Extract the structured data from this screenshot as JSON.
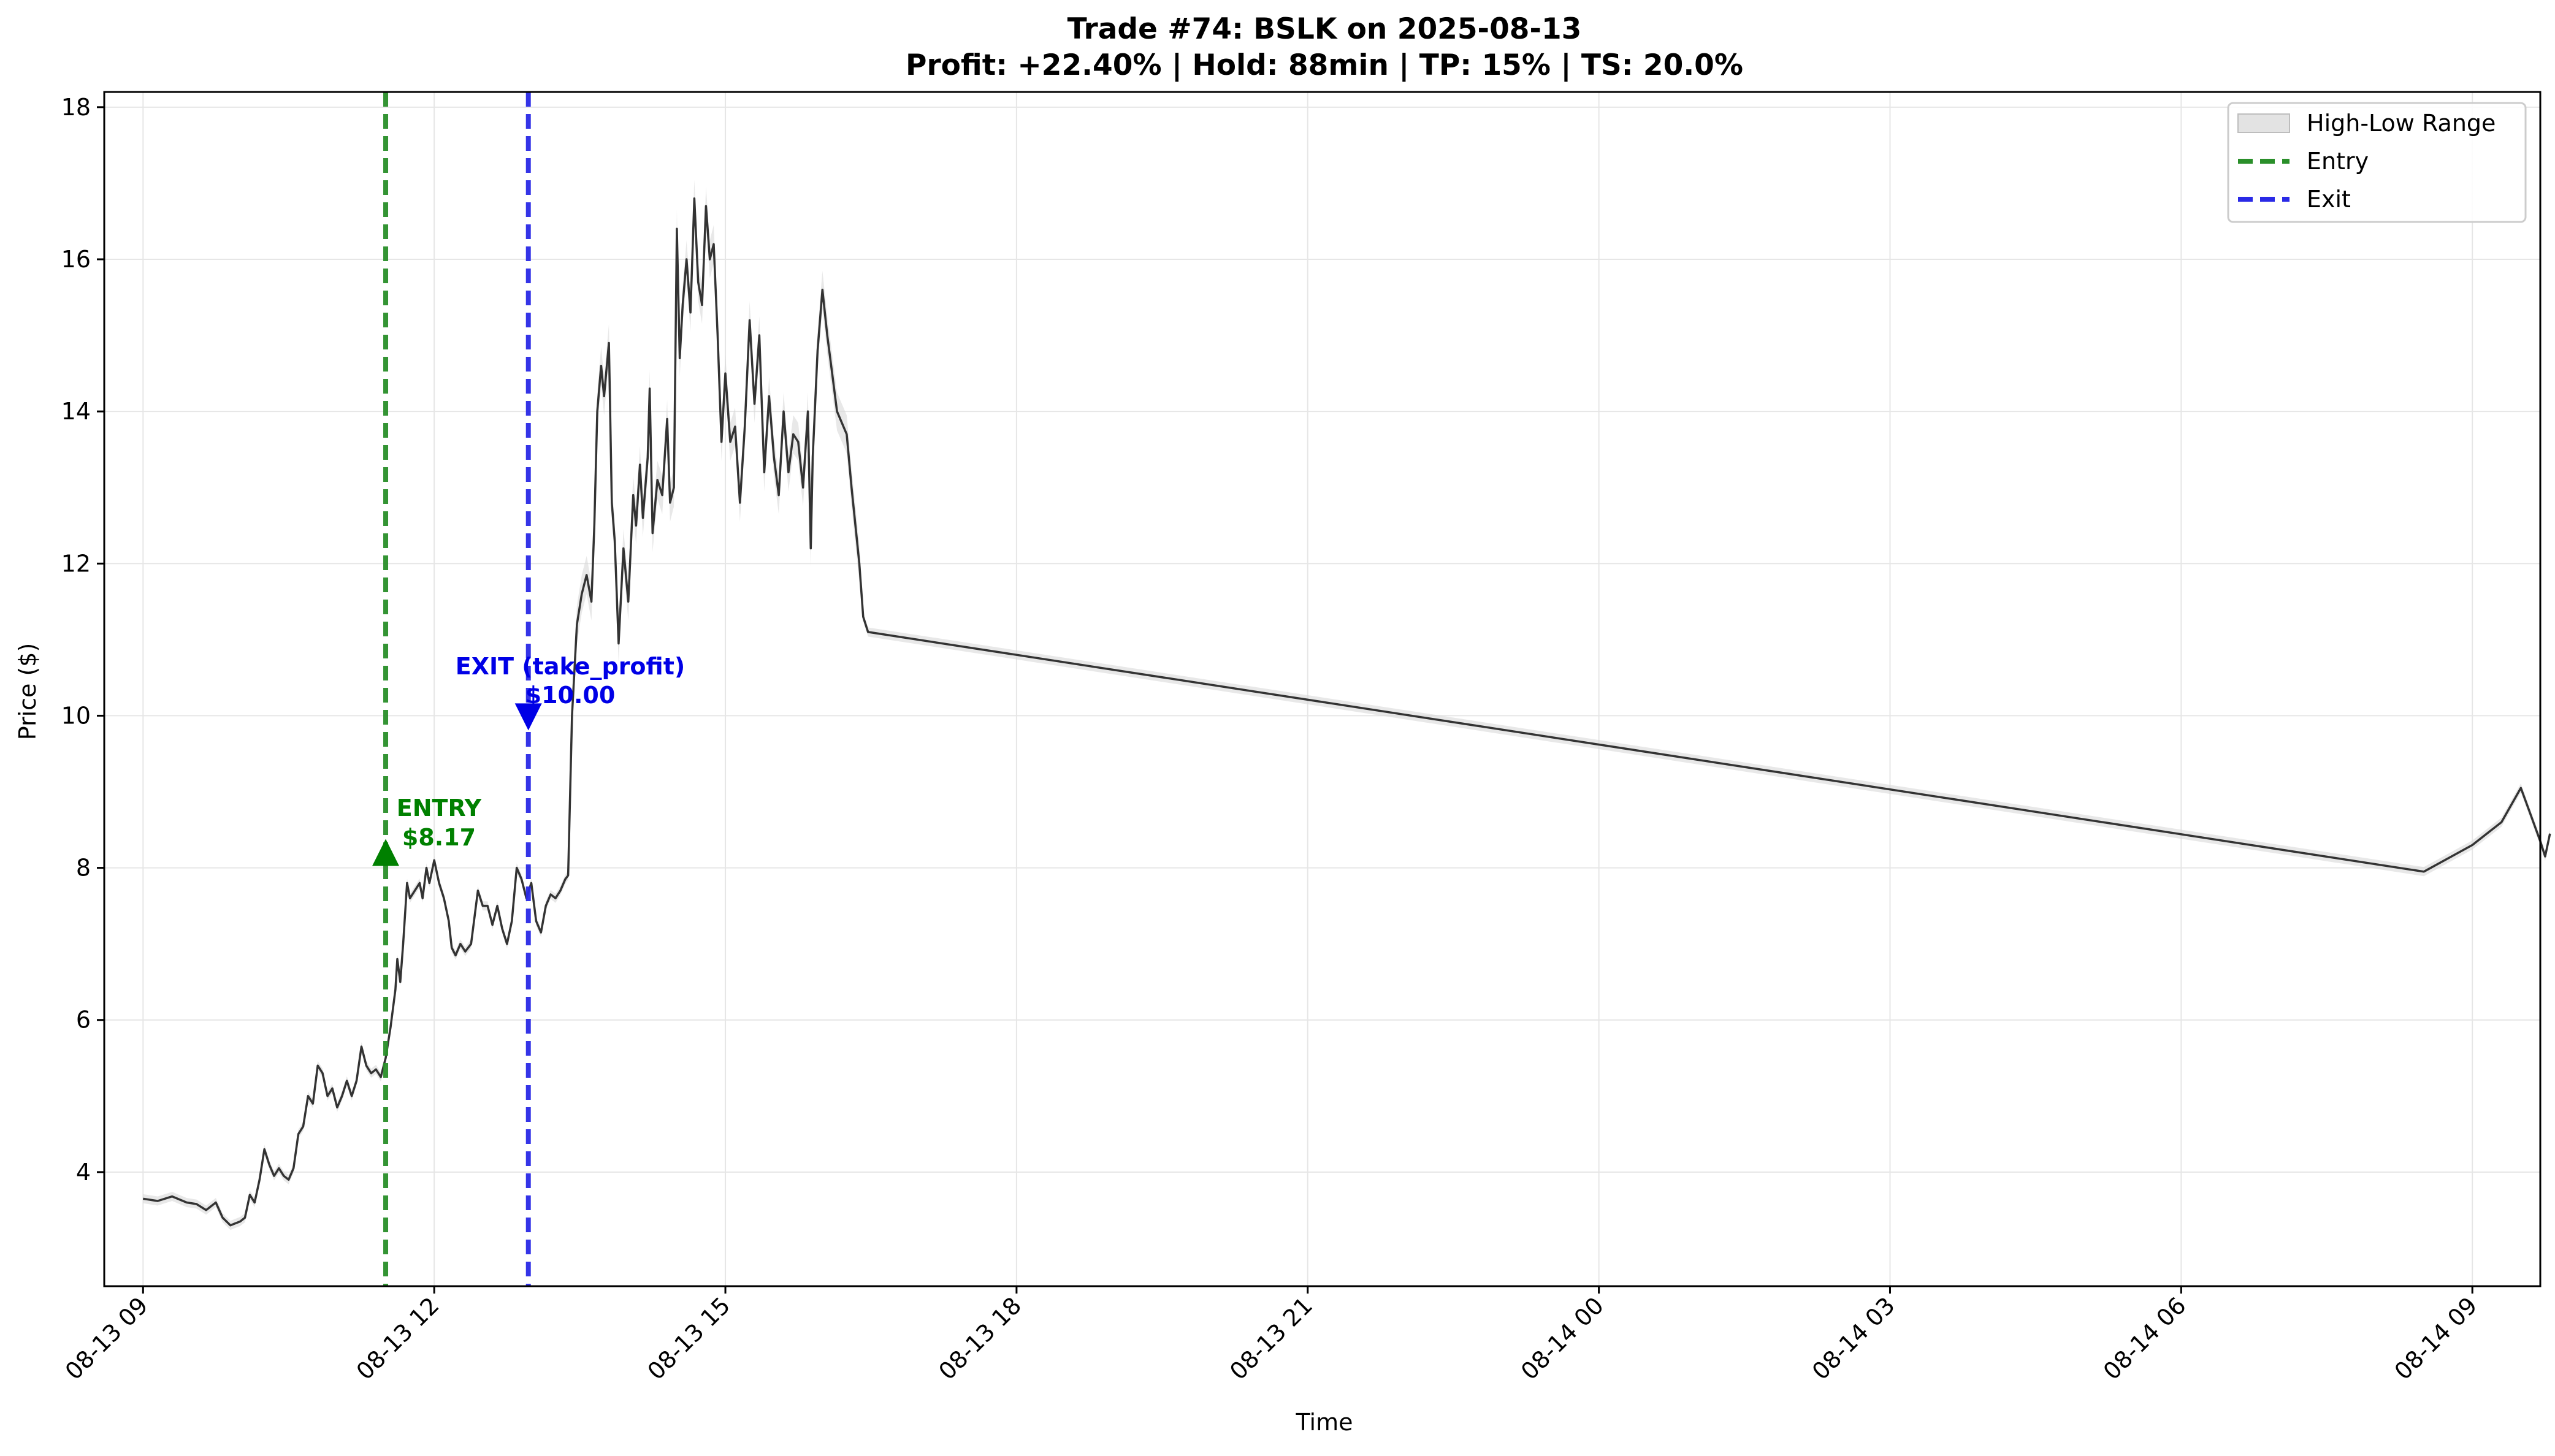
{
  "chart_data": {
    "type": "line",
    "title": "Trade #74: BSLK on 2025-08-13",
    "subtitle": "Profit: +22.40% | Hold: 88min | TP: 15% | TS: 20.0%",
    "xlabel": "Time",
    "ylabel": "Price ($)",
    "ylim": [
      2.5,
      18.2
    ],
    "xlim_hours": [
      -0.4,
      24.7
    ],
    "x_ticks": [
      {
        "h": 0,
        "label": "08-13 09"
      },
      {
        "h": 3,
        "label": "08-13 12"
      },
      {
        "h": 6,
        "label": "08-13 15"
      },
      {
        "h": 9,
        "label": "08-13 18"
      },
      {
        "h": 12,
        "label": "08-13 21"
      },
      {
        "h": 15,
        "label": "08-14 00"
      },
      {
        "h": 18,
        "label": "08-14 03"
      },
      {
        "h": 21,
        "label": "08-14 06"
      },
      {
        "h": 24,
        "label": "08-14 09"
      }
    ],
    "y_ticks": [
      4,
      6,
      8,
      10,
      12,
      14,
      16,
      18
    ],
    "grid": true,
    "legend_position": "top-right",
    "legend": [
      {
        "label": "High-Low Range",
        "kind": "band"
      },
      {
        "label": "Entry",
        "kind": "dashed",
        "color": "#2a8f2a"
      },
      {
        "label": "Exit",
        "kind": "dashed",
        "color": "#2a2ae6"
      }
    ],
    "x_start": "2025-08-13 09:00",
    "series": [
      {
        "kind": "close",
        "color": "#333333",
        "points": [
          [
            0,
            3.65
          ],
          [
            0.15,
            3.62
          ],
          [
            0.3,
            3.68
          ],
          [
            0.45,
            3.6
          ],
          [
            0.55,
            3.58
          ],
          [
            0.65,
            3.5
          ],
          [
            0.75,
            3.6
          ],
          [
            0.82,
            3.4
          ],
          [
            0.9,
            3.3
          ],
          [
            1.0,
            3.35
          ],
          [
            1.05,
            3.4
          ],
          [
            1.1,
            3.7
          ],
          [
            1.15,
            3.6
          ],
          [
            1.2,
            3.9
          ],
          [
            1.25,
            4.3
          ],
          [
            1.3,
            4.1
          ],
          [
            1.35,
            3.95
          ],
          [
            1.4,
            4.05
          ],
          [
            1.45,
            3.95
          ],
          [
            1.5,
            3.9
          ],
          [
            1.55,
            4.05
          ],
          [
            1.6,
            4.5
          ],
          [
            1.65,
            4.6
          ],
          [
            1.7,
            5.0
          ],
          [
            1.75,
            4.9
          ],
          [
            1.8,
            5.4
          ],
          [
            1.85,
            5.3
          ],
          [
            1.9,
            5.0
          ],
          [
            1.95,
            5.1
          ],
          [
            2.0,
            4.85
          ],
          [
            2.05,
            5.0
          ],
          [
            2.1,
            5.2
          ],
          [
            2.15,
            5.0
          ],
          [
            2.2,
            5.2
          ],
          [
            2.25,
            5.65
          ],
          [
            2.3,
            5.4
          ],
          [
            2.35,
            5.3
          ],
          [
            2.4,
            5.35
          ],
          [
            2.45,
            5.25
          ],
          [
            2.5,
            5.5
          ],
          [
            2.55,
            5.9
          ],
          [
            2.6,
            6.4
          ],
          [
            2.62,
            6.8
          ],
          [
            2.65,
            6.5
          ],
          [
            2.68,
            7.0
          ],
          [
            2.72,
            7.8
          ],
          [
            2.75,
            7.6
          ],
          [
            2.8,
            7.7
          ],
          [
            2.85,
            7.8
          ],
          [
            2.88,
            7.6
          ],
          [
            2.92,
            8.0
          ],
          [
            2.95,
            7.8
          ],
          [
            3.0,
            8.1
          ],
          [
            3.05,
            7.8
          ],
          [
            3.1,
            7.6
          ],
          [
            3.15,
            7.3
          ],
          [
            3.18,
            6.95
          ],
          [
            3.22,
            6.85
          ],
          [
            3.27,
            7.0
          ],
          [
            3.32,
            6.9
          ],
          [
            3.38,
            7.0
          ],
          [
            3.45,
            7.7
          ],
          [
            3.5,
            7.5
          ],
          [
            3.55,
            7.5
          ],
          [
            3.6,
            7.25
          ],
          [
            3.65,
            7.5
          ],
          [
            3.7,
            7.2
          ],
          [
            3.75,
            7.0
          ],
          [
            3.8,
            7.3
          ],
          [
            3.85,
            8.0
          ],
          [
            3.9,
            7.85
          ],
          [
            3.95,
            7.6
          ],
          [
            4.0,
            7.8
          ],
          [
            4.05,
            7.3
          ],
          [
            4.1,
            7.15
          ],
          [
            4.15,
            7.5
          ],
          [
            4.2,
            7.65
          ],
          [
            4.25,
            7.6
          ],
          [
            4.3,
            7.7
          ],
          [
            4.35,
            7.85
          ],
          [
            4.38,
            7.9
          ],
          [
            4.42,
            10.0
          ],
          [
            4.47,
            11.2
          ],
          [
            4.52,
            11.6
          ],
          [
            4.57,
            11.85
          ],
          [
            4.62,
            11.5
          ],
          [
            4.65,
            12.5
          ],
          [
            4.68,
            14.0
          ],
          [
            4.72,
            14.6
          ],
          [
            4.75,
            14.2
          ],
          [
            4.8,
            14.9
          ],
          [
            4.83,
            12.8
          ],
          [
            4.86,
            12.3
          ],
          [
            4.9,
            10.95
          ],
          [
            4.95,
            12.2
          ],
          [
            5.0,
            11.5
          ],
          [
            5.05,
            12.9
          ],
          [
            5.08,
            12.5
          ],
          [
            5.12,
            13.3
          ],
          [
            5.15,
            12.6
          ],
          [
            5.2,
            13.4
          ],
          [
            5.22,
            14.3
          ],
          [
            5.25,
            12.4
          ],
          [
            5.3,
            13.1
          ],
          [
            5.35,
            12.9
          ],
          [
            5.4,
            13.9
          ],
          [
            5.43,
            12.8
          ],
          [
            5.47,
            13.0
          ],
          [
            5.5,
            16.4
          ],
          [
            5.53,
            14.7
          ],
          [
            5.56,
            15.4
          ],
          [
            5.6,
            16.0
          ],
          [
            5.64,
            15.3
          ],
          [
            5.68,
            16.8
          ],
          [
            5.72,
            15.7
          ],
          [
            5.76,
            15.4
          ],
          [
            5.8,
            16.7
          ],
          [
            5.84,
            16.0
          ],
          [
            5.88,
            16.2
          ],
          [
            5.92,
            15.0
          ],
          [
            5.96,
            13.6
          ],
          [
            6.0,
            14.5
          ],
          [
            6.05,
            13.6
          ],
          [
            6.1,
            13.8
          ],
          [
            6.15,
            12.8
          ],
          [
            6.2,
            13.8
          ],
          [
            6.25,
            15.2
          ],
          [
            6.3,
            14.1
          ],
          [
            6.35,
            15.0
          ],
          [
            6.4,
            13.2
          ],
          [
            6.45,
            14.2
          ],
          [
            6.5,
            13.4
          ],
          [
            6.55,
            12.9
          ],
          [
            6.6,
            14.0
          ],
          [
            6.65,
            13.2
          ],
          [
            6.7,
            13.7
          ],
          [
            6.75,
            13.6
          ],
          [
            6.8,
            13.0
          ],
          [
            6.85,
            14.0
          ],
          [
            6.88,
            12.2
          ],
          [
            6.9,
            13.4
          ],
          [
            6.95,
            14.8
          ],
          [
            7.0,
            15.6
          ],
          [
            7.05,
            15.0
          ],
          [
            7.1,
            14.5
          ],
          [
            7.15,
            14.0
          ],
          [
            7.25,
            13.7
          ],
          [
            7.3,
            13.0
          ],
          [
            7.38,
            12.0
          ],
          [
            7.42,
            11.3
          ],
          [
            7.47,
            11.1
          ],
          [
            23.5,
            7.95
          ],
          [
            24.0,
            8.3
          ],
          [
            24.3,
            8.6
          ],
          [
            24.5,
            9.05
          ],
          [
            24.6,
            8.7
          ],
          [
            24.7,
            8.35
          ],
          [
            24.75,
            8.15
          ],
          [
            24.8,
            8.45
          ]
        ]
      }
    ],
    "entry": {
      "h": 2.5,
      "price": 8.17,
      "label": "ENTRY",
      "price_label": "$8.17",
      "color": "#008000"
    },
    "exit": {
      "h": 3.97,
      "price": 10.0,
      "label": "EXIT (take_profit)",
      "price_label": "$10.00",
      "color": "#0000e6"
    }
  }
}
